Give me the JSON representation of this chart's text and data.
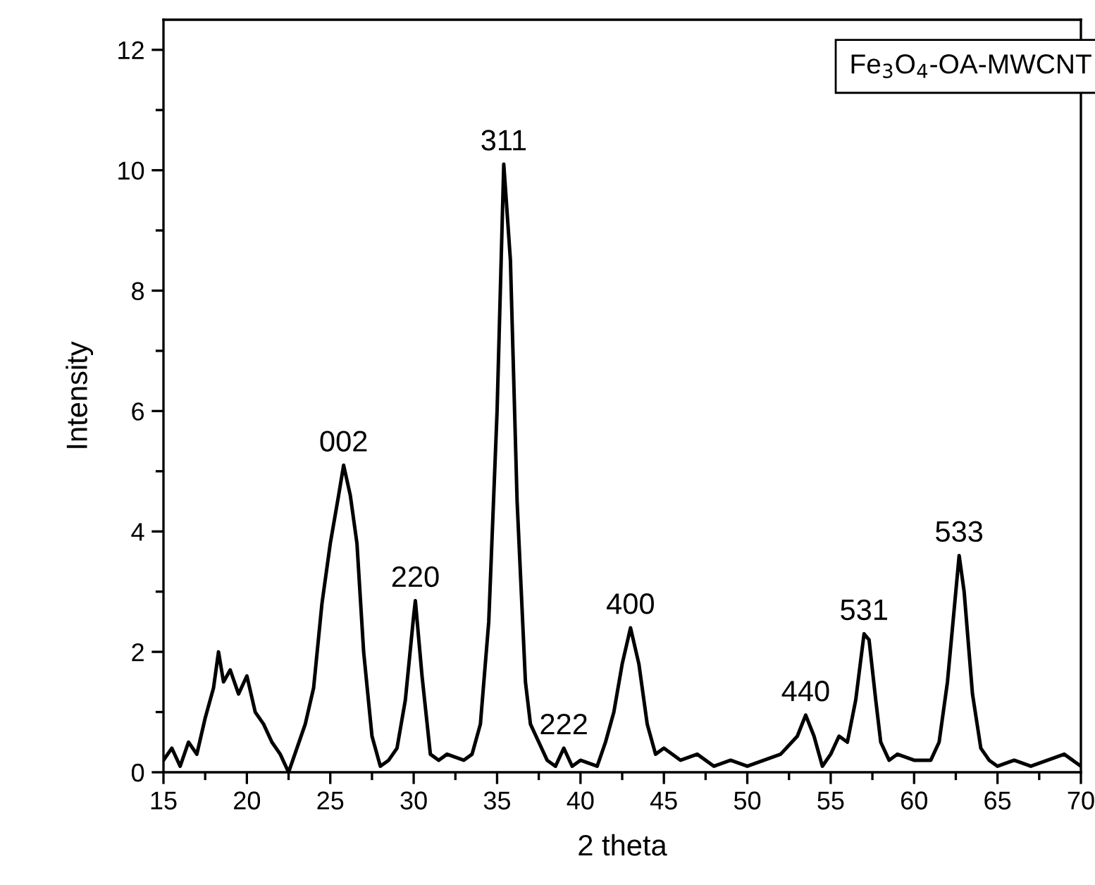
{
  "chart_data": {
    "type": "line",
    "xlabel": "2 theta",
    "ylabel": "Intensity",
    "x": [
      15,
      15.5,
      16,
      16.5,
      17,
      17.5,
      18,
      18.3,
      18.6,
      19,
      19.5,
      20,
      20.5,
      21,
      21.5,
      22,
      22.5,
      23,
      23.5,
      24,
      24.5,
      25,
      25.5,
      25.8,
      26.2,
      26.6,
      27,
      27.5,
      28,
      28.5,
      29,
      29.5,
      30,
      30.1,
      30.5,
      31,
      31.5,
      32,
      33,
      33.5,
      34,
      34.5,
      35,
      35.4,
      35.8,
      36.2,
      36.7,
      37,
      37.5,
      38,
      38.5,
      39,
      39.5,
      40,
      41,
      41.5,
      42,
      42.5,
      43,
      43.5,
      44,
      44.5,
      45,
      46,
      47,
      48,
      49,
      50,
      51,
      52,
      53,
      53.5,
      54,
      54.5,
      55,
      55.5,
      56,
      56.5,
      57,
      57.3,
      57.7,
      58,
      58.5,
      59,
      60,
      61,
      61.5,
      62,
      62.5,
      62.7,
      63,
      63.5,
      64,
      64.5,
      65,
      66,
      67,
      68,
      69,
      70
    ],
    "series": [
      {
        "color": "#000000",
        "values": [
          0.2,
          0.4,
          0.1,
          0.5,
          0.3,
          0.9,
          1.4,
          2.0,
          1.5,
          1.7,
          1.3,
          1.6,
          1.0,
          0.8,
          0.5,
          0.3,
          0.0,
          0.4,
          0.8,
          1.4,
          2.8,
          3.8,
          4.6,
          5.1,
          4.6,
          3.8,
          2.0,
          0.6,
          0.1,
          0.2,
          0.4,
          1.2,
          2.6,
          2.85,
          1.6,
          0.3,
          0.2,
          0.3,
          0.2,
          0.3,
          0.8,
          2.5,
          6.0,
          10.1,
          8.5,
          4.5,
          1.5,
          0.8,
          0.5,
          0.2,
          0.1,
          0.4,
          0.1,
          0.2,
          0.1,
          0.5,
          1.0,
          1.8,
          2.4,
          1.8,
          0.8,
          0.3,
          0.4,
          0.2,
          0.3,
          0.1,
          0.2,
          0.1,
          0.2,
          0.3,
          0.6,
          0.95,
          0.6,
          0.1,
          0.3,
          0.6,
          0.5,
          1.2,
          2.3,
          2.2,
          1.2,
          0.5,
          0.2,
          0.3,
          0.2,
          0.2,
          0.5,
          1.5,
          3.0,
          3.6,
          3.0,
          1.3,
          0.4,
          0.2,
          0.1,
          0.2,
          0.1,
          0.2,
          0.3,
          0.1
        ]
      }
    ],
    "xlim": [
      15,
      70
    ],
    "xticks": [
      15,
      20,
      25,
      30,
      35,
      40,
      45,
      50,
      55,
      60,
      65,
      70
    ],
    "ylim": [
      0,
      12.5
    ],
    "yticks": [
      0,
      2,
      4,
      6,
      8,
      10,
      12
    ],
    "grid": false,
    "legend": false,
    "marker": "none",
    "line_style": "solid",
    "annotations": [
      {
        "text": "002",
        "x": 25.8,
        "y": 5.1
      },
      {
        "text": "220",
        "x": 30.1,
        "y": 2.85
      },
      {
        "text": "311",
        "x": 35.4,
        "y": 10.1
      },
      {
        "text": "222",
        "x": 39,
        "y": 0.4
      },
      {
        "text": "400",
        "x": 43,
        "y": 2.4
      },
      {
        "text": "440",
        "x": 53.5,
        "y": 0.95
      },
      {
        "text": "531",
        "x": 57,
        "y": 2.3
      },
      {
        "text": "533",
        "x": 62.7,
        "y": 3.6
      },
      "Fe$_{3}$O$_{4}$-OA-MWCNT"
    ]
  }
}
